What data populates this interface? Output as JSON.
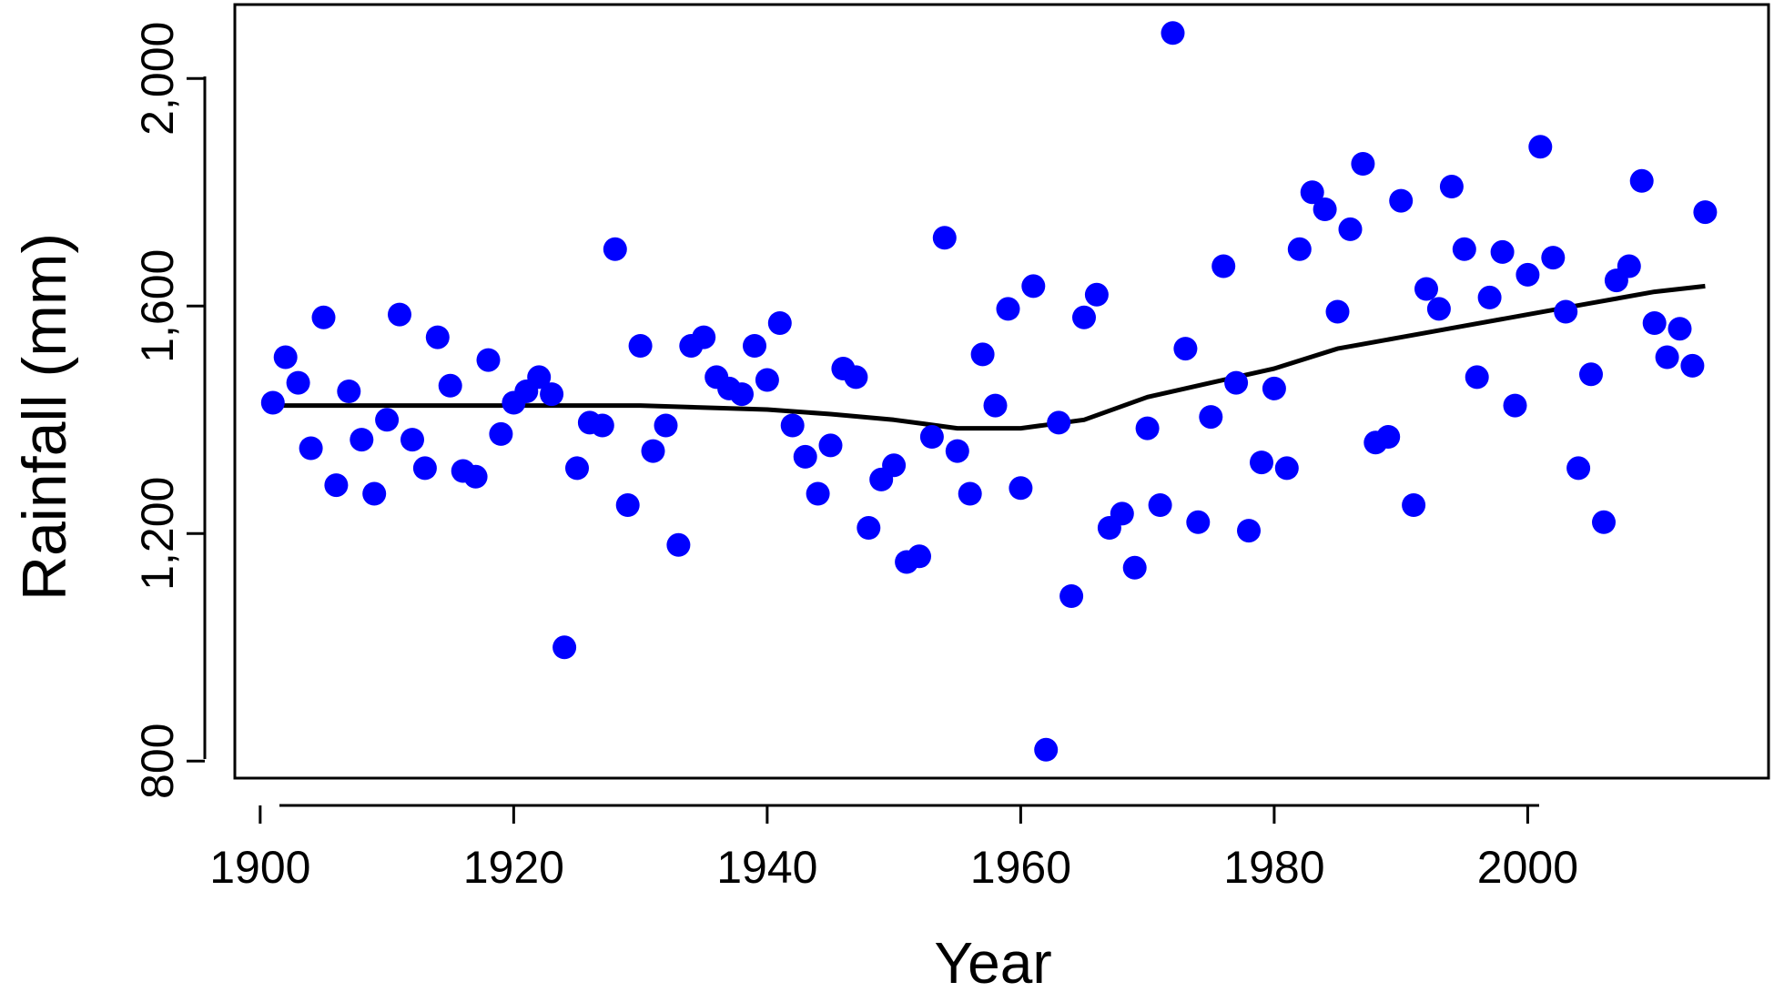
{
  "chart_data": {
    "type": "scatter",
    "xlabel": "Year",
    "ylabel": "Rainfall (mm)",
    "xlim": [
      1898,
      2019
    ],
    "ylim": [
      770,
      2130
    ],
    "xticks": [
      1900,
      1920,
      1940,
      1960,
      1980,
      2000
    ],
    "xtick_labels": [
      "1900",
      "1920",
      "1940",
      "1960",
      "1980",
      "2000"
    ],
    "yticks": [
      800,
      1200,
      1600,
      2000
    ],
    "ytick_labels": [
      "800",
      "1,200",
      "1,600",
      "2,000"
    ],
    "grid": false,
    "point_color": "#0000ff",
    "line_color": "#000000",
    "series": [
      {
        "kind": "points",
        "x": [
          1901,
          1902,
          1903,
          1904,
          1905,
          1906,
          1907,
          1908,
          1909,
          1910,
          1911,
          1912,
          1913,
          1914,
          1915,
          1916,
          1917,
          1918,
          1919,
          1920,
          1921,
          1922,
          1923,
          1924,
          1925,
          1926,
          1927,
          1928,
          1929,
          1930,
          1931,
          1932,
          1933,
          1934,
          1935,
          1936,
          1937,
          1938,
          1939,
          1940,
          1941,
          1942,
          1943,
          1944,
          1945,
          1946,
          1947,
          1948,
          1949,
          1950,
          1951,
          1952,
          1953,
          1954,
          1955,
          1956,
          1957,
          1958,
          1959,
          1960,
          1961,
          1962,
          1963,
          1964,
          1965,
          1966,
          1967,
          1968,
          1969,
          1970,
          1971,
          1972,
          1973,
          1974,
          1975,
          1976,
          1977,
          1978,
          1979,
          1980,
          1981,
          1982,
          1983,
          1984,
          1985,
          1986,
          1987,
          1988,
          1989,
          1990,
          1991,
          1992,
          1993,
          1994,
          1995,
          1996,
          1997,
          1998,
          1999,
          2000,
          2001,
          2002,
          2003,
          2004,
          2005,
          2006,
          2007,
          2008,
          2009,
          2010,
          2011,
          2012,
          2013,
          2014
        ],
        "y": [
          1430,
          1510,
          1465,
          1350,
          1580,
          1285,
          1450,
          1365,
          1270,
          1400,
          1585,
          1365,
          1315,
          1545,
          1460,
          1310,
          1300,
          1505,
          1375,
          1430,
          1450,
          1475,
          1445,
          1000,
          1315,
          1395,
          1390,
          1700,
          1250,
          1530,
          1345,
          1390,
          1180,
          1530,
          1545,
          1475,
          1455,
          1445,
          1530,
          1470,
          1570,
          1390,
          1335,
          1270,
          1355,
          1490,
          1475,
          1210,
          1295,
          1320,
          1150,
          1160,
          1370,
          1720,
          1345,
          1270,
          1515,
          1425,
          1595,
          1280,
          1635,
          820,
          1395,
          1090,
          1580,
          1620,
          1210,
          1235,
          1140,
          1385,
          1250,
          2080,
          1525,
          1220,
          1405,
          1670,
          1465,
          1205,
          1325,
          1455,
          1315,
          1700,
          1800,
          1770,
          1590,
          1735,
          1850,
          1360,
          1370,
          1785,
          1250,
          1630,
          1595,
          1810,
          1700,
          1475,
          1615,
          1695,
          1425,
          1655,
          1880,
          1685,
          1590,
          1315,
          1480,
          1220,
          1645,
          1670,
          1820,
          1570,
          1510,
          1560,
          1495,
          1765
        ]
      },
      {
        "kind": "line",
        "x": [
          1901,
          1910,
          1920,
          1930,
          1940,
          1945,
          1950,
          1955,
          1960,
          1965,
          1970,
          1975,
          1980,
          1985,
          1990,
          1995,
          2000,
          2005,
          2010,
          2014
        ],
        "y": [
          1425,
          1425,
          1425,
          1425,
          1418,
          1410,
          1400,
          1385,
          1385,
          1400,
          1440,
          1465,
          1490,
          1525,
          1545,
          1565,
          1585,
          1605,
          1625,
          1635
        ]
      }
    ]
  }
}
